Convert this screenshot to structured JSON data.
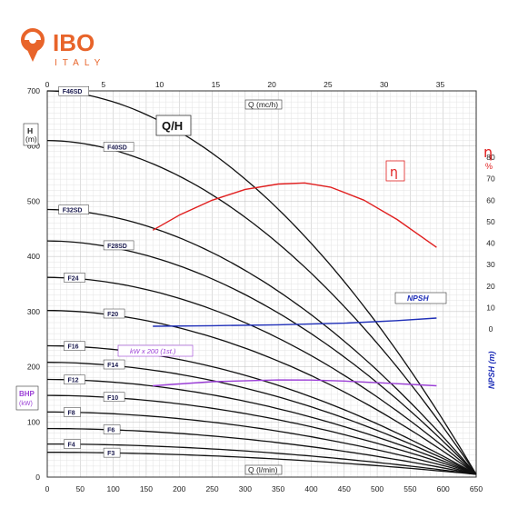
{
  "brand": {
    "name": "IBO",
    "sub": "ITALY",
    "color": "#e8642a"
  },
  "chart_data": {
    "type": "line",
    "title": "Q/H",
    "top_axis": {
      "label": "Q",
      "unit": "(mc/h)",
      "range": [
        0,
        38.2
      ],
      "ticks": [
        0,
        5,
        10,
        15,
        20,
        25,
        30,
        35
      ]
    },
    "bottom_axis": {
      "label": "Q",
      "unit": "(l/min)",
      "range": [
        0,
        650
      ],
      "ticks": [
        0,
        50,
        100,
        150,
        200,
        250,
        300,
        350,
        400,
        450,
        500,
        550,
        600,
        650
      ]
    },
    "left_axis": {
      "label": "H",
      "unit": "(m)",
      "range": [
        0,
        700
      ],
      "ticks": [
        0,
        100,
        200,
        300,
        400,
        500,
        600,
        700
      ]
    },
    "eta_axis": {
      "label": "η",
      "unit": "%",
      "range": [
        0,
        80
      ],
      "ticks": [
        0,
        10,
        20,
        30,
        40,
        50,
        60,
        70,
        80
      ]
    },
    "npsh_axis": {
      "label": "NPSH (m)"
    },
    "bhp_label": {
      "name": "BHP",
      "unit": "(kW)"
    },
    "grid": true,
    "head_curves": [
      {
        "name": "F46SD",
        "h0": 700,
        "q_end": 650,
        "h_end": 5,
        "label_x": 12
      },
      {
        "name": "F40SD",
        "h0": 610,
        "q_end": 650,
        "h_end": 5,
        "label_x": 80
      },
      {
        "name": "F32SD",
        "h0": 485,
        "q_end": 650,
        "h_end": 5,
        "label_x": 12
      },
      {
        "name": "F28SD",
        "h0": 428,
        "q_end": 650,
        "h_end": 5,
        "label_x": 80
      },
      {
        "name": "F24",
        "h0": 362,
        "q_end": 650,
        "h_end": 5,
        "label_x": 20
      },
      {
        "name": "F20",
        "h0": 302,
        "q_end": 650,
        "h_end": 5,
        "label_x": 80
      },
      {
        "name": "F16",
        "h0": 238,
        "q_end": 650,
        "h_end": 5,
        "label_x": 20
      },
      {
        "name": "F14",
        "h0": 208,
        "q_end": 650,
        "h_end": 5,
        "label_x": 80
      },
      {
        "name": "F12",
        "h0": 177,
        "q_end": 650,
        "h_end": 5,
        "label_x": 20
      },
      {
        "name": "F10",
        "h0": 148,
        "q_end": 650,
        "h_end": 5,
        "label_x": 80
      },
      {
        "name": "F8",
        "h0": 118,
        "q_end": 650,
        "h_end": 5,
        "label_x": 20
      },
      {
        "name": "F6",
        "h0": 88,
        "q_end": 650,
        "h_end": 5,
        "label_x": 80
      },
      {
        "name": "F4",
        "h0": 60,
        "q_end": 650,
        "h_end": 5,
        "label_x": 20
      },
      {
        "name": "F3",
        "h0": 45,
        "q_end": 650,
        "h_end": 5,
        "label_x": 80
      }
    ],
    "efficiency_curve": {
      "name": "η",
      "color": "#e01e1e",
      "points": [
        [
          160,
          46
        ],
        [
          200,
          53
        ],
        [
          250,
          60
        ],
        [
          300,
          65
        ],
        [
          350,
          67.5
        ],
        [
          390,
          68
        ],
        [
          430,
          66
        ],
        [
          480,
          60
        ],
        [
          530,
          51
        ],
        [
          590,
          38
        ]
      ]
    },
    "npsh_curve": {
      "name": "NPSH",
      "color": "#1f2fb8",
      "points": [
        [
          160,
          0.5
        ],
        [
          250,
          0.8
        ],
        [
          350,
          1.3
        ],
        [
          450,
          2.2
        ],
        [
          530,
          3.6
        ],
        [
          590,
          5.0
        ]
      ]
    },
    "bhp_curve": {
      "name": "kW x 200 (1st.)",
      "color": "#9b3fd6",
      "points": [
        [
          160,
          0.5
        ],
        [
          250,
          0.8
        ],
        [
          350,
          0.93
        ],
        [
          400,
          0.92
        ],
        [
          450,
          0.85
        ],
        [
          520,
          0.68
        ],
        [
          590,
          0.5
        ]
      ]
    }
  }
}
